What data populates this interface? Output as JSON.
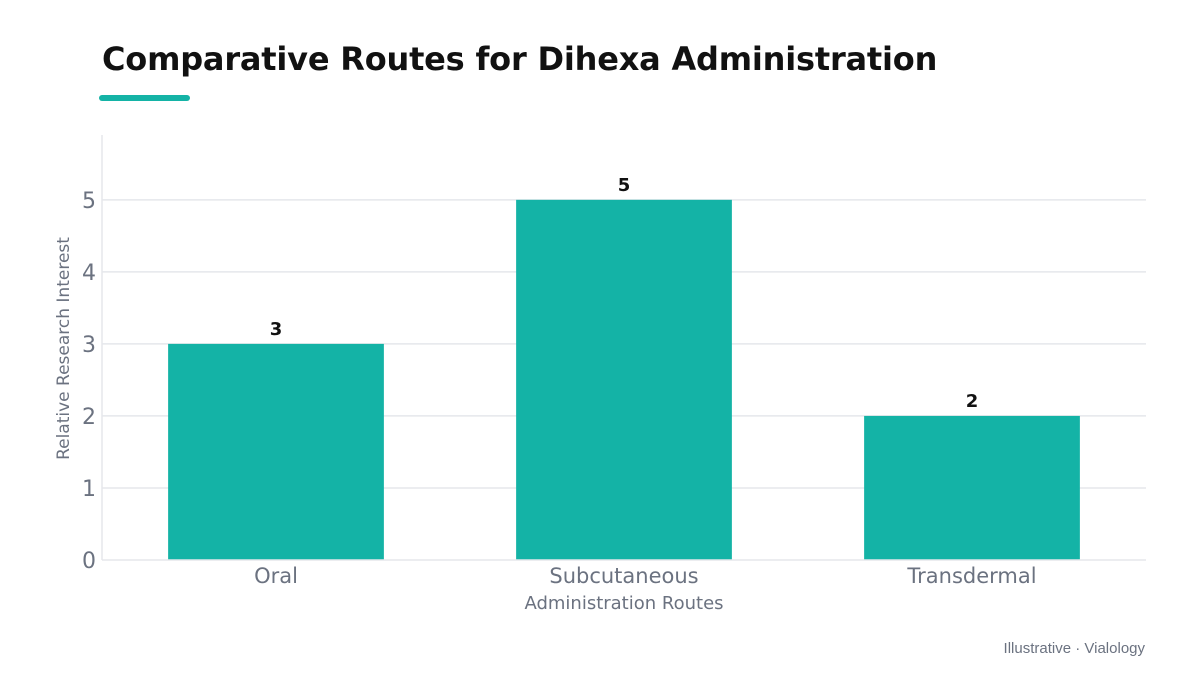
{
  "colors": {
    "accent": "#14b3a6",
    "grid": "#e5e7eb",
    "axis_text": "#6b7280",
    "value_text": "#111111"
  },
  "footer": "Illustrative · Vialology",
  "chart_data": {
    "type": "bar",
    "title": "Comparative Routes for Dihexa Administration",
    "categories": [
      "Oral",
      "Subcutaneous",
      "Transdermal"
    ],
    "values": [
      3,
      5,
      2
    ],
    "xlabel": "Administration Routes",
    "ylabel": "Relative Research Interest",
    "ylim": [
      0,
      5.9
    ],
    "yticks": [
      0,
      1,
      2,
      3,
      4,
      5
    ],
    "grid": true,
    "data_labels": true
  }
}
